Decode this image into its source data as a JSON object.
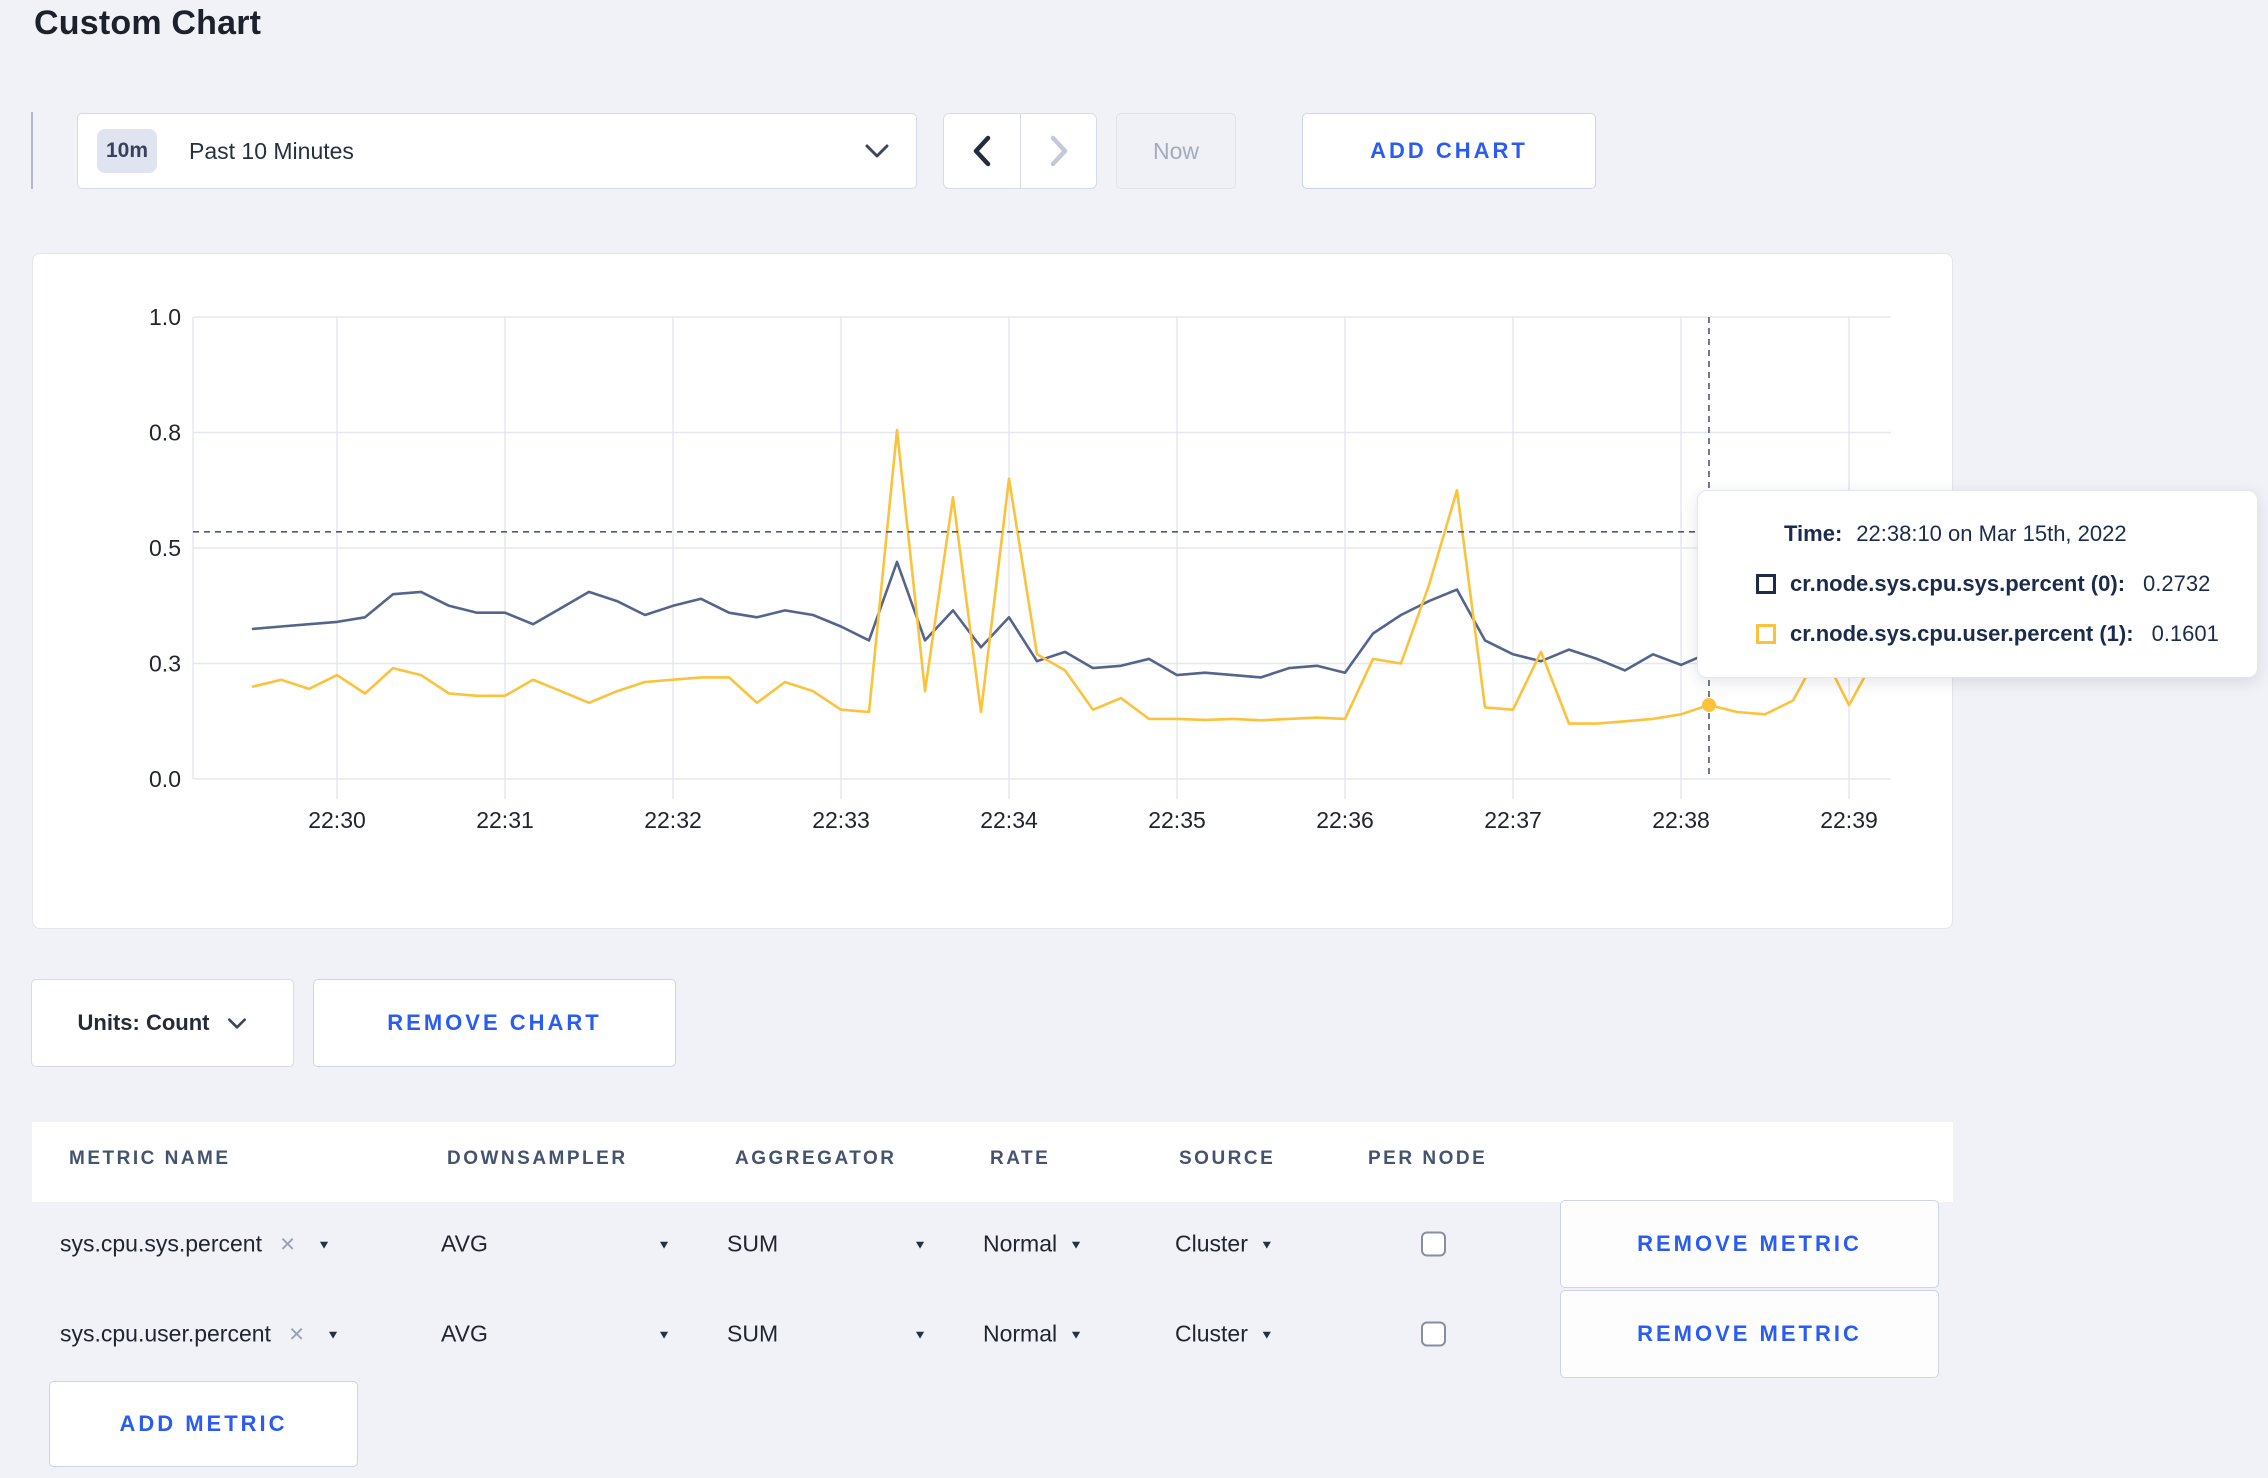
{
  "page": {
    "title": "Custom Chart",
    "background": "#f1f2f7",
    "accent_blue": "#2a5cf4"
  },
  "toolbar": {
    "time_range": {
      "badge": "10m",
      "label": "Past 10 Minutes"
    },
    "now_label": "Now",
    "add_chart_label": "ADD CHART"
  },
  "icons": {
    "triangle_down": "▼",
    "clear_x": "×"
  },
  "chart": {
    "tooltip": {
      "time_label": "Time:",
      "time_value": "22:38:10 on Mar 15th, 2022",
      "rows": [
        {
          "label": "cr.node.sys.cpu.sys.percent (0):",
          "value": "0.2732",
          "color": "#1b2b4c"
        },
        {
          "label": "cr.node.sys.cpu.user.percent (1):",
          "value": "0.1601",
          "color": "#fcc23c"
        }
      ]
    }
  },
  "chart_data": {
    "type": "line",
    "title": "",
    "xlabel": "",
    "ylabel": "",
    "ylim": [
      0,
      1
    ],
    "grid": true,
    "x_start": "22:29:30",
    "x_end": "22:39:10",
    "x_interval_seconds": 10,
    "x_ticks": [
      "22:30",
      "22:31",
      "22:32",
      "22:33",
      "22:34",
      "22:35",
      "22:36",
      "22:37",
      "22:38",
      "22:39"
    ],
    "y_ticks": [
      {
        "label": "0.0",
        "value": 0
      },
      {
        "label": "0.3",
        "value": 0.25
      },
      {
        "label": "0.5",
        "value": 0.5
      },
      {
        "label": "0.8",
        "value": 0.75
      },
      {
        "label": "1.0",
        "value": 1
      }
    ],
    "series": [
      {
        "name": "cr.node.sys.cpu.sys.percent (0)",
        "color": "#54658b",
        "values": [
          0.325,
          0.33,
          0.335,
          0.34,
          0.35,
          0.4,
          0.405,
          0.375,
          0.36,
          0.36,
          0.335,
          0.37,
          0.405,
          0.385,
          0.355,
          0.375,
          0.39,
          0.36,
          0.35,
          0.365,
          0.355,
          0.33,
          0.3,
          0.47,
          0.3,
          0.365,
          0.285,
          0.35,
          0.255,
          0.275,
          0.24,
          0.245,
          0.26,
          0.225,
          0.23,
          0.225,
          0.22,
          0.24,
          0.245,
          0.23,
          0.315,
          0.355,
          0.385,
          0.41,
          0.3,
          0.27,
          0.255,
          0.28,
          0.26,
          0.235,
          0.27,
          0.247,
          0.2732,
          0.3,
          0.31,
          0.3,
          0.295,
          0.3,
          0.3
        ]
      },
      {
        "name": "cr.node.sys.cpu.user.percent (1)",
        "color": "#fcc23c",
        "values": [
          0.2,
          0.215,
          0.195,
          0.225,
          0.185,
          0.24,
          0.225,
          0.185,
          0.18,
          0.18,
          0.215,
          0.19,
          0.165,
          0.19,
          0.21,
          0.215,
          0.22,
          0.22,
          0.165,
          0.21,
          0.19,
          0.15,
          0.145,
          0.755,
          0.19,
          0.61,
          0.145,
          0.65,
          0.27,
          0.235,
          0.15,
          0.175,
          0.13,
          0.13,
          0.128,
          0.13,
          0.127,
          0.13,
          0.133,
          0.13,
          0.26,
          0.25,
          0.42,
          0.625,
          0.155,
          0.15,
          0.275,
          0.12,
          0.12,
          0.125,
          0.13,
          0.14,
          0.1601,
          0.145,
          0.14,
          0.17,
          0.28,
          0.16,
          0.27
        ]
      }
    ],
    "legend_position": "none",
    "hover": {
      "time_label": "22:38:10 on Mar 15th, 2022",
      "x_index": 52,
      "values": [
        0.2732,
        0.1601
      ],
      "guideline_value": 0.535
    }
  },
  "controls": {
    "units_label": "Units: Count",
    "remove_chart_label": "REMOVE CHART",
    "add_metric_label": "ADD METRIC"
  },
  "table": {
    "headers": [
      "METRIC NAME",
      "DOWNSAMPLER",
      "AGGREGATOR",
      "RATE",
      "SOURCE",
      "PER NODE"
    ],
    "remove_metric_label": "REMOVE METRIC",
    "rows": [
      {
        "metric_name": "sys.cpu.sys.percent",
        "downsampler": "AVG",
        "aggregator": "SUM",
        "rate": "Normal",
        "source": "Cluster",
        "per_node_checked": false
      },
      {
        "metric_name": "sys.cpu.user.percent",
        "downsampler": "AVG",
        "aggregator": "SUM",
        "rate": "Normal",
        "source": "Cluster",
        "per_node_checked": false
      }
    ]
  }
}
